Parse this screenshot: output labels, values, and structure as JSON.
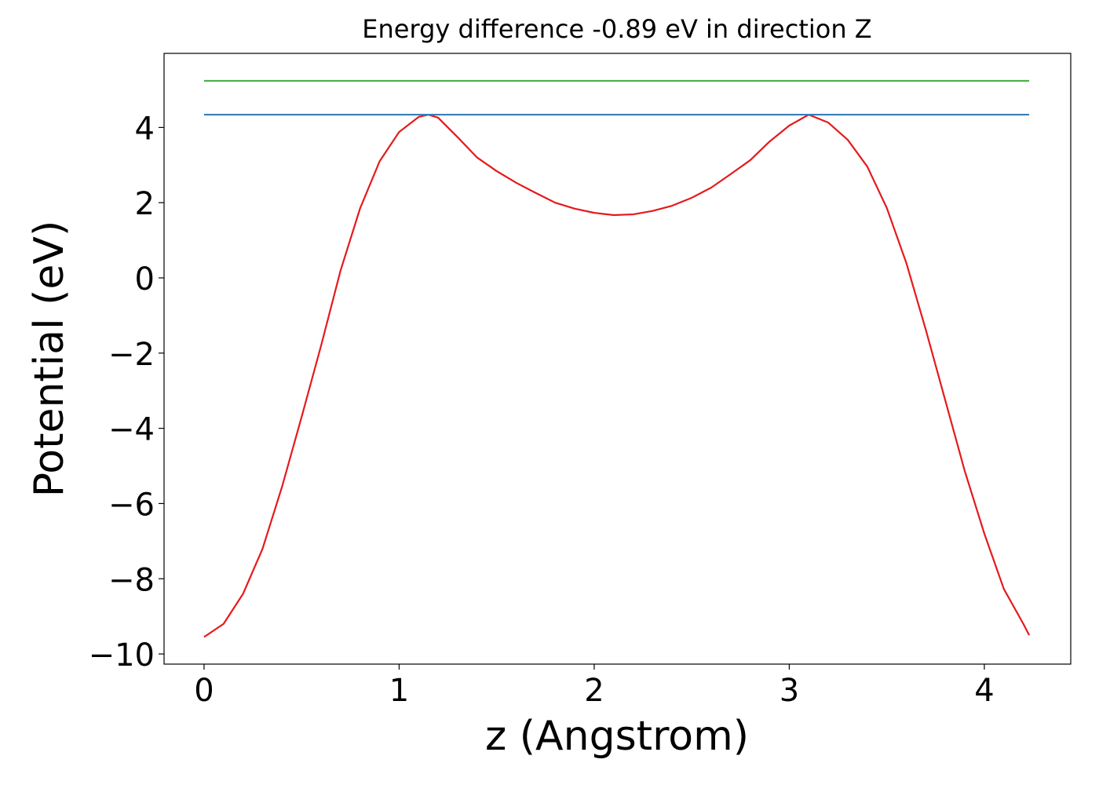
{
  "chart_data": {
    "type": "line",
    "title": "Energy difference -0.89 eV in direction Z",
    "x_label": "z (Angstrom)",
    "y_label": "Potential (eV)",
    "xlim": [
      -0.205,
      4.443
    ],
    "ylim": [
      -10.27,
      5.97
    ],
    "xticks": [
      0,
      1,
      2,
      3,
      4
    ],
    "yticks": [
      {
        "value": -10,
        "label": "−10"
      },
      {
        "value": -8,
        "label": "−8"
      },
      {
        "value": -6,
        "label": "−6"
      },
      {
        "value": -4,
        "label": "−4"
      },
      {
        "value": -2,
        "label": "−2"
      },
      0,
      2,
      4
    ],
    "series": [
      {
        "color": "#e41a1c",
        "x": [
          0,
          0.1,
          0.2,
          0.3,
          0.4,
          0.5,
          0.6,
          0.7,
          0.8,
          0.9,
          1.0,
          1.1,
          1.15,
          1.2,
          1.3,
          1.4,
          1.5,
          1.6,
          1.7,
          1.8,
          1.9,
          2.0,
          2.1,
          2.2,
          2.3,
          2.4,
          2.5,
          2.6,
          2.7,
          2.8,
          2.9,
          3.0,
          3.1,
          3.2,
          3.3,
          3.4,
          3.5,
          3.6,
          3.7,
          3.8,
          3.9,
          4.0,
          4.1,
          4.2,
          4.23
        ],
        "values": [
          -9.55,
          -9.2,
          -8.4,
          -7.2,
          -5.55,
          -3.7,
          -1.8,
          0.2,
          1.85,
          3.1,
          3.88,
          4.28,
          4.34,
          4.26,
          3.74,
          3.2,
          2.84,
          2.53,
          2.26,
          2.0,
          1.84,
          1.73,
          1.67,
          1.69,
          1.78,
          1.92,
          2.13,
          2.4,
          2.76,
          3.13,
          3.63,
          4.05,
          4.34,
          4.13,
          3.67,
          2.96,
          1.86,
          0.4,
          -1.38,
          -3.26,
          -5.14,
          -6.8,
          -8.27,
          -9.2,
          -9.5
        ]
      },
      {
        "color": "#377eb8",
        "x": [
          0,
          4.23
        ],
        "values": [
          4.34,
          4.34
        ]
      },
      {
        "color": "#4daf4a",
        "x": [
          0,
          4.23
        ],
        "values": [
          5.24,
          5.24
        ]
      }
    ]
  }
}
